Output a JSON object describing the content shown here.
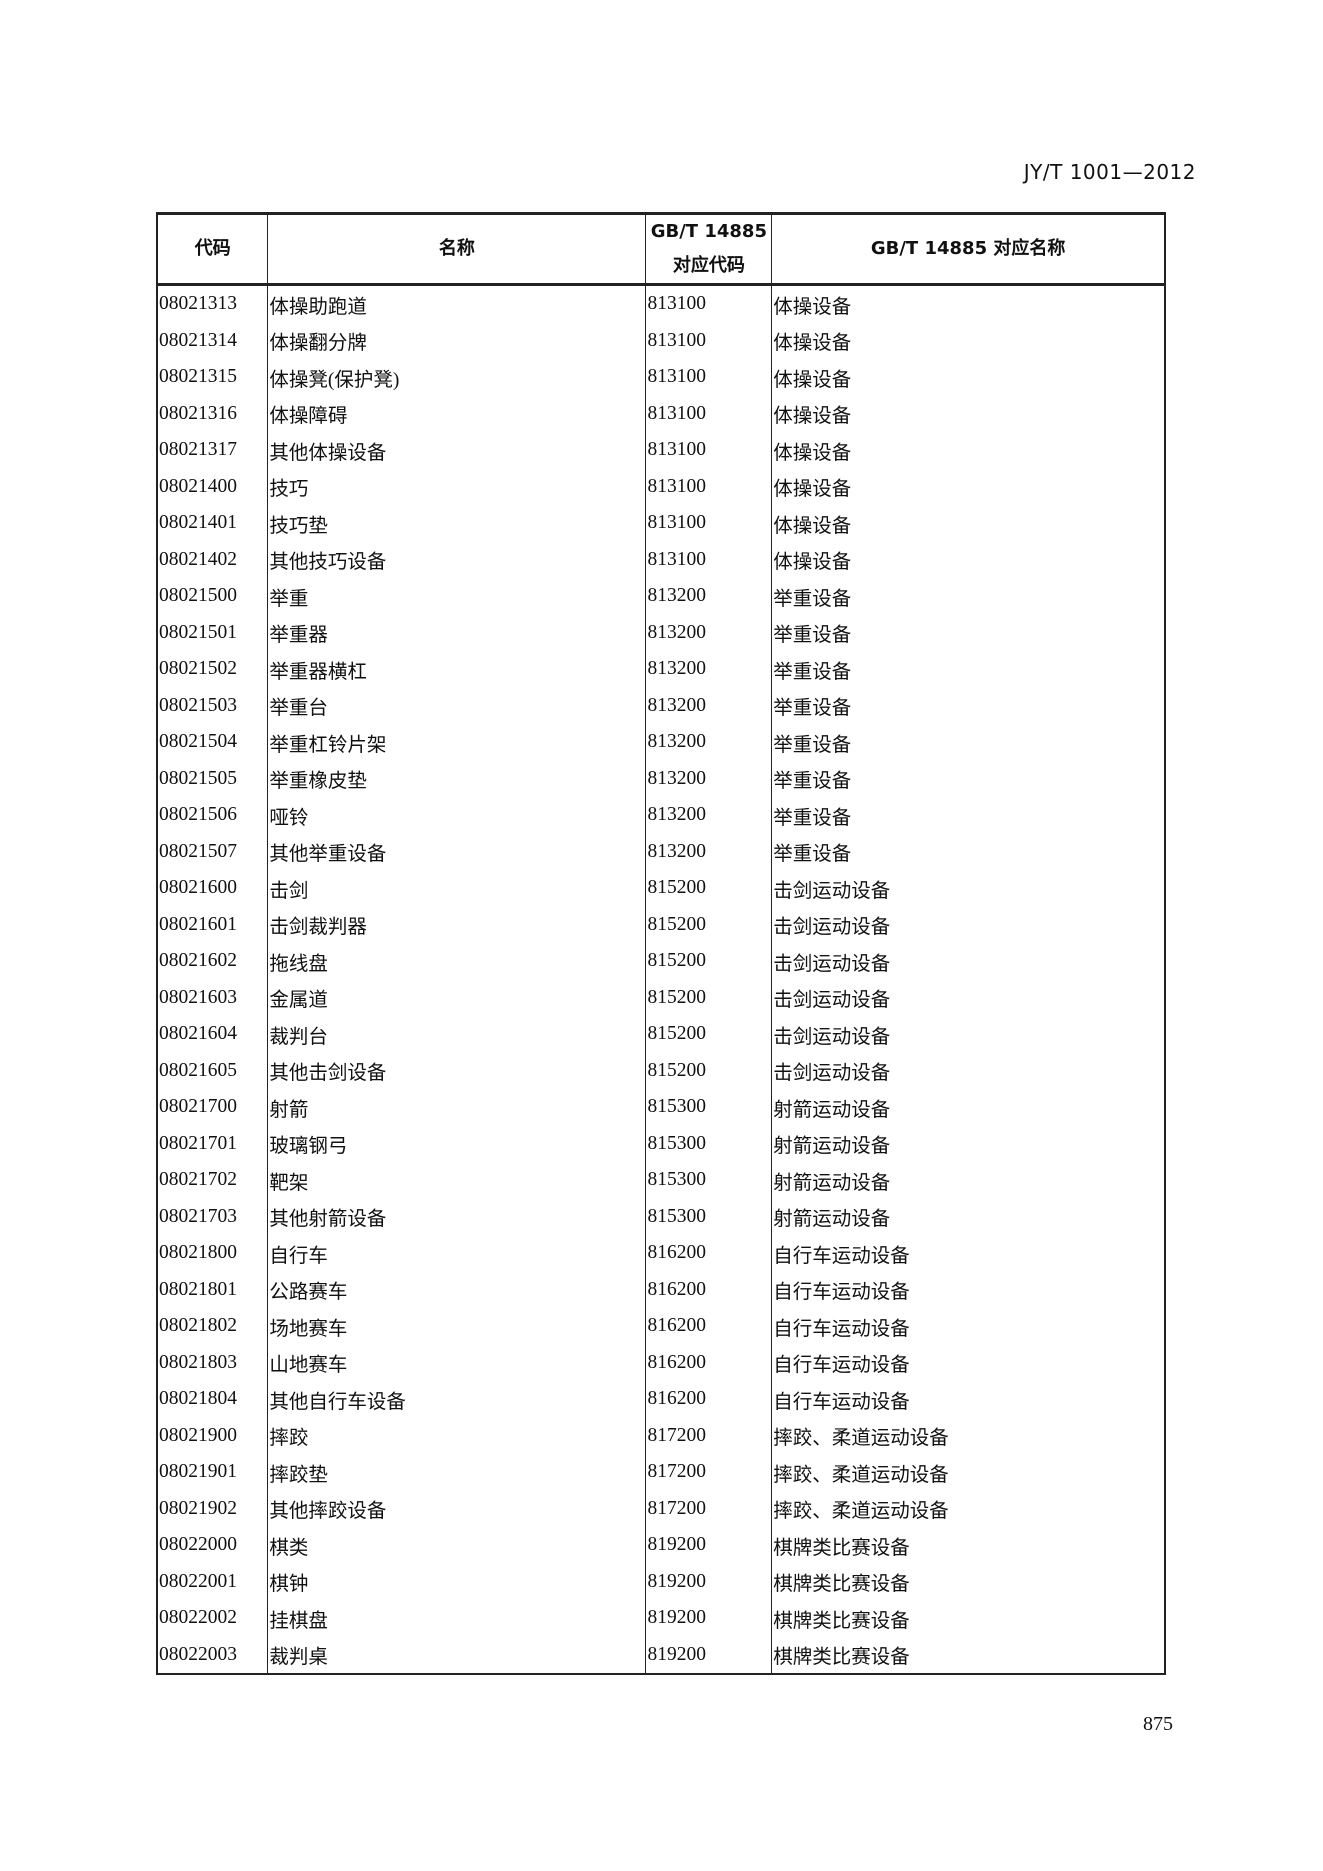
{
  "header": {
    "standard_code": "JY/T 1001—2012"
  },
  "table": {
    "columns": [
      "代码",
      "名称",
      "GB/T 14885\n对应代码",
      "GB/T 14885 对应名称"
    ],
    "column_lines": [
      [
        "代码"
      ],
      [
        "名称"
      ],
      [
        "GB/T 14885",
        "对应代码"
      ],
      [
        "GB/T 14885 对应名称"
      ]
    ],
    "rows": [
      [
        "08021313",
        "体操助跑道",
        "813100",
        "体操设备"
      ],
      [
        "08021314",
        "体操翻分牌",
        "813100",
        "体操设备"
      ],
      [
        "08021315",
        "体操凳(保护凳)",
        "813100",
        "体操设备"
      ],
      [
        "08021316",
        "体操障碍",
        "813100",
        "体操设备"
      ],
      [
        "08021317",
        "其他体操设备",
        "813100",
        "体操设备"
      ],
      [
        "08021400",
        "技巧",
        "813100",
        "体操设备"
      ],
      [
        "08021401",
        "技巧垫",
        "813100",
        "体操设备"
      ],
      [
        "08021402",
        "其他技巧设备",
        "813100",
        "体操设备"
      ],
      [
        "08021500",
        "举重",
        "813200",
        "举重设备"
      ],
      [
        "08021501",
        "举重器",
        "813200",
        "举重设备"
      ],
      [
        "08021502",
        "举重器横杠",
        "813200",
        "举重设备"
      ],
      [
        "08021503",
        "举重台",
        "813200",
        "举重设备"
      ],
      [
        "08021504",
        "举重杠铃片架",
        "813200",
        "举重设备"
      ],
      [
        "08021505",
        "举重橡皮垫",
        "813200",
        "举重设备"
      ],
      [
        "08021506",
        "哑铃",
        "813200",
        "举重设备"
      ],
      [
        "08021507",
        "其他举重设备",
        "813200",
        "举重设备"
      ],
      [
        "08021600",
        "击剑",
        "815200",
        "击剑运动设备"
      ],
      [
        "08021601",
        "击剑裁判器",
        "815200",
        "击剑运动设备"
      ],
      [
        "08021602",
        "拖线盘",
        "815200",
        "击剑运动设备"
      ],
      [
        "08021603",
        "金属道",
        "815200",
        "击剑运动设备"
      ],
      [
        "08021604",
        "裁判台",
        "815200",
        "击剑运动设备"
      ],
      [
        "08021605",
        "其他击剑设备",
        "815200",
        "击剑运动设备"
      ],
      [
        "08021700",
        "射箭",
        "815300",
        "射箭运动设备"
      ],
      [
        "08021701",
        "玻璃钢弓",
        "815300",
        "射箭运动设备"
      ],
      [
        "08021702",
        "靶架",
        "815300",
        "射箭运动设备"
      ],
      [
        "08021703",
        "其他射箭设备",
        "815300",
        "射箭运动设备"
      ],
      [
        "08021800",
        "自行车",
        "816200",
        "自行车运动设备"
      ],
      [
        "08021801",
        "公路赛车",
        "816200",
        "自行车运动设备"
      ],
      [
        "08021802",
        "场地赛车",
        "816200",
        "自行车运动设备"
      ],
      [
        "08021803",
        "山地赛车",
        "816200",
        "自行车运动设备"
      ],
      [
        "08021804",
        "其他自行车设备",
        "816200",
        "自行车运动设备"
      ],
      [
        "08021900",
        "摔跤",
        "817200",
        "摔跤、柔道运动设备"
      ],
      [
        "08021901",
        "摔跤垫",
        "817200",
        "摔跤、柔道运动设备"
      ],
      [
        "08021902",
        "其他摔跤设备",
        "817200",
        "摔跤、柔道运动设备"
      ],
      [
        "08022000",
        "棋类",
        "819200",
        "棋牌类比赛设备"
      ],
      [
        "08022001",
        "棋钟",
        "819200",
        "棋牌类比赛设备"
      ],
      [
        "08022002",
        "挂棋盘",
        "819200",
        "棋牌类比赛设备"
      ],
      [
        "08022003",
        "裁判桌",
        "819200",
        "棋牌类比赛设备"
      ]
    ]
  },
  "footer": {
    "page_number": "875"
  }
}
